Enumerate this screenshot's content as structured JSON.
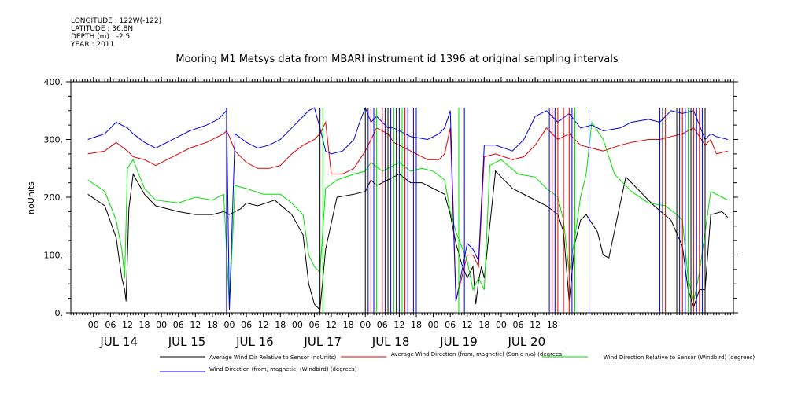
{
  "header": {
    "longitude": "LONGITUDE : 122W(-122)",
    "latitude": "LATITUDE : 36.8N",
    "depth": "DEPTH (m) : -2.5",
    "year": "YEAR : 2011"
  },
  "chart_data": {
    "type": "line",
    "title": "Mooring M1 Metsys data from MBARI instrument id 1396 at original sampling intervals",
    "ylabel": "noUnits",
    "ylim": [
      0,
      400
    ],
    "y_ticks": [
      "0.",
      "100.",
      "200.",
      "300.",
      "400."
    ],
    "xlim_hours": [
      -8,
      226
    ],
    "hour_ticks": [
      "00",
      "06",
      "12",
      "18",
      "00",
      "06",
      "12",
      "18",
      "00",
      "06",
      "12",
      "18",
      "00",
      "06",
      "12",
      "18",
      "00",
      "06",
      "12",
      "18",
      "00",
      "06",
      "12",
      "18",
      "00",
      "06",
      "12",
      "18"
    ],
    "day_labels": [
      "JUL 14",
      "JUL 15",
      "JUL 16",
      "JUL 17",
      "JUL 18",
      "JUL 19",
      "JUL 20"
    ],
    "series": [
      {
        "name": "Average Wind Dir Relative to Sensor (noUnits)",
        "color": "#000000",
        "points": [
          [
            -2,
            205
          ],
          [
            4,
            185
          ],
          [
            8,
            130
          ],
          [
            10,
            60
          ],
          [
            11,
            40
          ],
          [
            11.5,
            20
          ],
          [
            12.5,
            180
          ],
          [
            14,
            240
          ],
          [
            18,
            205
          ],
          [
            22,
            185
          ],
          [
            30,
            175
          ],
          [
            36,
            170
          ],
          [
            42,
            170
          ],
          [
            46,
            175
          ],
          [
            48,
            170
          ],
          [
            52,
            180
          ],
          [
            54,
            190
          ],
          [
            58,
            185
          ],
          [
            64,
            195
          ],
          [
            70,
            170
          ],
          [
            74,
            135
          ],
          [
            76,
            50
          ],
          [
            78,
            15
          ],
          [
            80,
            5
          ],
          [
            82,
            110
          ],
          [
            86,
            200
          ],
          [
            92,
            205
          ],
          [
            96,
            210
          ],
          [
            98,
            230
          ],
          [
            100,
            220
          ],
          [
            104,
            230
          ],
          [
            108,
            240
          ],
          [
            112,
            225
          ],
          [
            116,
            225
          ],
          [
            120,
            215
          ],
          [
            124,
            205
          ],
          [
            126,
            170
          ],
          [
            128,
            120
          ],
          [
            130,
            85
          ],
          [
            132,
            60
          ],
          [
            134,
            80
          ],
          [
            135,
            15
          ],
          [
            136,
            55
          ],
          [
            137,
            80
          ],
          [
            138,
            60
          ],
          [
            142,
            245
          ],
          [
            148,
            215
          ],
          [
            154,
            200
          ],
          [
            160,
            185
          ],
          [
            164,
            170
          ],
          [
            166,
            140
          ],
          [
            168,
            20
          ],
          [
            170,
            120
          ],
          [
            172,
            160
          ],
          [
            174,
            170
          ],
          [
            178,
            140
          ],
          [
            180,
            100
          ],
          [
            182,
            95
          ],
          [
            188,
            235
          ],
          [
            192,
            215
          ],
          [
            198,
            185
          ],
          [
            204,
            160
          ],
          [
            208,
            115
          ],
          [
            210,
            40
          ],
          [
            212,
            10
          ],
          [
            214,
            40
          ],
          [
            216,
            40
          ],
          [
            218,
            170
          ],
          [
            222,
            175
          ],
          [
            224,
            165
          ]
        ]
      },
      {
        "name": "Average Wind Direction (from, magnetic) (Sonic-n/a) (degrees)",
        "color": "#e00000",
        "points": [
          [
            -2,
            275
          ],
          [
            4,
            280
          ],
          [
            8,
            295
          ],
          [
            12,
            280
          ],
          [
            14,
            270
          ],
          [
            18,
            265
          ],
          [
            22,
            255
          ],
          [
            26,
            265
          ],
          [
            30,
            275
          ],
          [
            34,
            285
          ],
          [
            40,
            295
          ],
          [
            44,
            305
          ],
          [
            46,
            310
          ],
          [
            47,
            315
          ],
          [
            48,
            305
          ],
          [
            50,
            280
          ],
          [
            54,
            260
          ],
          [
            58,
            250
          ],
          [
            62,
            250
          ],
          [
            66,
            255
          ],
          [
            70,
            275
          ],
          [
            74,
            290
          ],
          [
            78,
            300
          ],
          [
            80,
            310
          ],
          [
            82,
            330
          ],
          [
            84,
            240
          ],
          [
            88,
            240
          ],
          [
            92,
            250
          ],
          [
            94,
            265
          ],
          [
            96,
            280
          ],
          [
            98,
            300
          ],
          [
            100,
            320
          ],
          [
            104,
            310
          ],
          [
            106,
            295
          ],
          [
            112,
            280
          ],
          [
            118,
            265
          ],
          [
            122,
            265
          ],
          [
            124,
            275
          ],
          [
            126,
            320
          ],
          [
            128,
            20
          ],
          [
            130,
            60
          ],
          [
            132,
            100
          ],
          [
            134,
            100
          ],
          [
            136,
            80
          ],
          [
            138,
            270
          ],
          [
            142,
            275
          ],
          [
            148,
            265
          ],
          [
            152,
            270
          ],
          [
            156,
            290
          ],
          [
            160,
            320
          ],
          [
            164,
            300
          ],
          [
            168,
            310
          ],
          [
            172,
            290
          ],
          [
            176,
            285
          ],
          [
            180,
            280
          ],
          [
            186,
            290
          ],
          [
            190,
            295
          ],
          [
            196,
            300
          ],
          [
            200,
            300
          ],
          [
            204,
            305
          ],
          [
            208,
            310
          ],
          [
            212,
            320
          ],
          [
            216,
            290
          ],
          [
            218,
            300
          ],
          [
            220,
            275
          ],
          [
            224,
            280
          ]
        ]
      },
      {
        "name": "Wind Direction Relative to Sensor (Windbird) (degrees)",
        "color": "#00e000",
        "points": [
          [
            -2,
            230
          ],
          [
            4,
            210
          ],
          [
            8,
            160
          ],
          [
            10,
            110
          ],
          [
            11,
            60
          ],
          [
            12,
            250
          ],
          [
            14,
            265
          ],
          [
            18,
            215
          ],
          [
            22,
            195
          ],
          [
            30,
            190
          ],
          [
            36,
            200
          ],
          [
            42,
            195
          ],
          [
            46,
            205
          ],
          [
            48,
            10
          ],
          [
            50,
            220
          ],
          [
            54,
            215
          ],
          [
            60,
            205
          ],
          [
            66,
            205
          ],
          [
            70,
            190
          ],
          [
            74,
            170
          ],
          [
            76,
            100
          ],
          [
            78,
            80
          ],
          [
            80,
            70
          ],
          [
            82,
            215
          ],
          [
            86,
            230
          ],
          [
            92,
            240
          ],
          [
            96,
            245
          ],
          [
            98,
            260
          ],
          [
            102,
            245
          ],
          [
            108,
            260
          ],
          [
            112,
            245
          ],
          [
            116,
            250
          ],
          [
            120,
            245
          ],
          [
            124,
            230
          ],
          [
            126,
            175
          ],
          [
            128,
            140
          ],
          [
            132,
            90
          ],
          [
            134,
            40
          ],
          [
            136,
            60
          ],
          [
            138,
            40
          ],
          [
            140,
            255
          ],
          [
            144,
            265
          ],
          [
            150,
            240
          ],
          [
            156,
            235
          ],
          [
            160,
            215
          ],
          [
            164,
            200
          ],
          [
            166,
            160
          ],
          [
            168,
            70
          ],
          [
            170,
            130
          ],
          [
            172,
            200
          ],
          [
            174,
            240
          ],
          [
            176,
            330
          ],
          [
            180,
            300
          ],
          [
            184,
            240
          ],
          [
            190,
            210
          ],
          [
            196,
            190
          ],
          [
            202,
            185
          ],
          [
            206,
            170
          ],
          [
            208,
            160
          ],
          [
            210,
            60
          ],
          [
            212,
            20
          ],
          [
            214,
            70
          ],
          [
            216,
            140
          ],
          [
            218,
            210
          ],
          [
            222,
            200
          ],
          [
            224,
            195
          ]
        ]
      },
      {
        "name": "Wind Direction (from, magnetic) (Windbird) (degrees)",
        "color": "#0000e0",
        "points": [
          [
            -2,
            300
          ],
          [
            4,
            310
          ],
          [
            8,
            330
          ],
          [
            12,
            320
          ],
          [
            14,
            310
          ],
          [
            18,
            295
          ],
          [
            22,
            285
          ],
          [
            26,
            295
          ],
          [
            30,
            305
          ],
          [
            34,
            315
          ],
          [
            40,
            325
          ],
          [
            44,
            335
          ],
          [
            47,
            350
          ],
          [
            48,
            5
          ],
          [
            50,
            310
          ],
          [
            54,
            295
          ],
          [
            58,
            285
          ],
          [
            62,
            290
          ],
          [
            66,
            300
          ],
          [
            70,
            320
          ],
          [
            74,
            340
          ],
          [
            76,
            350
          ],
          [
            78,
            355
          ],
          [
            80,
            320
          ],
          [
            82,
            280
          ],
          [
            84,
            275
          ],
          [
            88,
            280
          ],
          [
            92,
            300
          ],
          [
            94,
            330
          ],
          [
            96,
            355
          ],
          [
            98,
            330
          ],
          [
            100,
            340
          ],
          [
            104,
            320
          ],
          [
            106,
            320
          ],
          [
            112,
            305
          ],
          [
            118,
            300
          ],
          [
            122,
            310
          ],
          [
            124,
            320
          ],
          [
            126,
            350
          ],
          [
            128,
            20
          ],
          [
            130,
            70
          ],
          [
            132,
            120
          ],
          [
            134,
            110
          ],
          [
            136,
            90
          ],
          [
            138,
            290
          ],
          [
            142,
            290
          ],
          [
            148,
            280
          ],
          [
            152,
            300
          ],
          [
            156,
            340
          ],
          [
            160,
            350
          ],
          [
            164,
            330
          ],
          [
            168,
            345
          ],
          [
            172,
            320
          ],
          [
            176,
            325
          ],
          [
            180,
            315
          ],
          [
            186,
            320
          ],
          [
            190,
            330
          ],
          [
            196,
            335
          ],
          [
            200,
            330
          ],
          [
            204,
            350
          ],
          [
            208,
            345
          ],
          [
            212,
            350
          ],
          [
            216,
            300
          ],
          [
            218,
            310
          ],
          [
            220,
            305
          ],
          [
            224,
            300
          ]
        ]
      }
    ],
    "spikes": [
      {
        "color": "#0000e0",
        "hours": [
          47,
          97,
          99,
          103,
          105,
          107,
          108,
          111,
          113,
          114,
          131,
          161,
          163,
          169,
          175,
          200,
          207,
          209,
          213,
          215
        ]
      },
      {
        "color": "#e00000",
        "hours": [
          98,
          102,
          104,
          106,
          110,
          162,
          164,
          166,
          168,
          202,
          208,
          212,
          214
        ]
      },
      {
        "color": "#00e000",
        "hours": [
          81,
          100,
          104,
          106,
          109,
          129,
          170,
          210
        ]
      },
      {
        "color": "#000000",
        "hours": [
          80,
          96,
          104,
          107,
          201,
          206,
          211,
          216
        ]
      }
    ]
  }
}
